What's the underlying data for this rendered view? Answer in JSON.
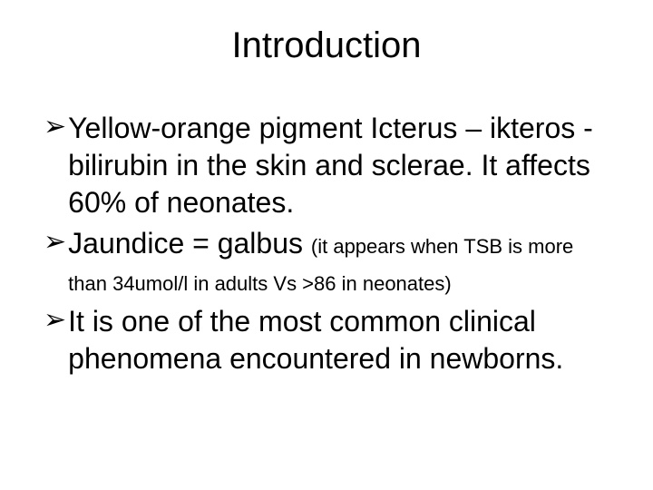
{
  "slide": {
    "title": "Introduction",
    "background_color": "#ffffff",
    "text_color": "#000000",
    "title_fontsize": 40,
    "body_fontsize": 32,
    "small_fontsize": 22,
    "font_family": "Arial",
    "bullet_glyph": "➢",
    "bullets": [
      {
        "main": "Yellow-orange pigment  Icterus – ikteros - bilirubin in the skin and sclerae. It affects 60% of neonates.",
        "small": ""
      },
      {
        "main": "Jaundice = galbus ",
        "small": " (it appears when TSB is more than 34umol/l in adults Vs >86 in neonates)"
      },
      {
        "main": "It is one of the most common clinical phenomena encountered in newborns.",
        "small": ""
      }
    ]
  }
}
